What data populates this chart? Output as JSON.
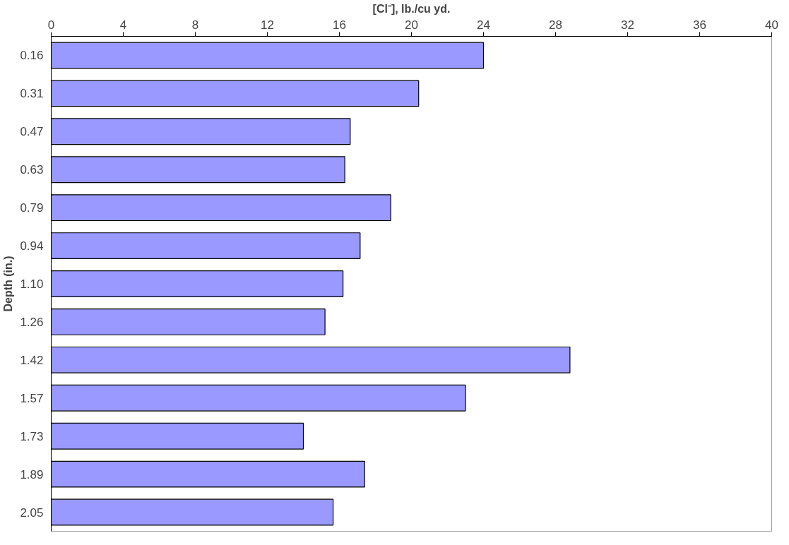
{
  "chart_data": {
    "type": "bar",
    "orientation": "horizontal",
    "xlabel": "[Cl⁻], lb./cu yd.",
    "ylabel": "Depth (in.)",
    "categories": [
      "0.16",
      "0.31",
      "0.47",
      "0.63",
      "0.79",
      "0.94",
      "1.10",
      "1.26",
      "1.42",
      "1.57",
      "1.73",
      "1.89",
      "2.05"
    ],
    "values": [
      24.0,
      20.4,
      16.6,
      16.3,
      18.85,
      17.15,
      16.2,
      15.2,
      28.8,
      23.0,
      14.0,
      17.4,
      15.65
    ],
    "color": "#9999ff",
    "xlim": [
      0,
      40
    ],
    "xticks": [
      0,
      4,
      8,
      12,
      16,
      20,
      24,
      28,
      32,
      36,
      40
    ],
    "grid": false
  }
}
